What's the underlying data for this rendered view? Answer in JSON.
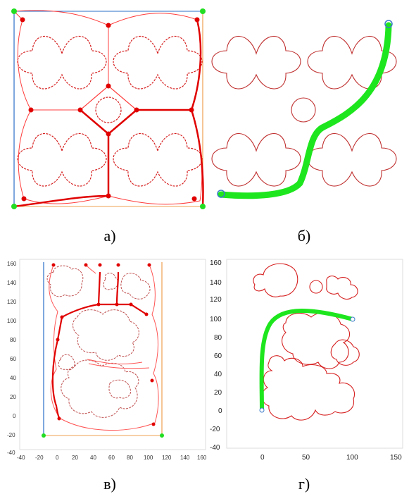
{
  "captions": {
    "a": "а)",
    "b": "б)",
    "c": "в)",
    "d": "г)"
  },
  "colors": {
    "obstacle": "#d62020",
    "diagram_edge": "#ff3b3b",
    "path": "#1ee61e",
    "node": "#e00000",
    "corner_node": "#22dd22",
    "left_border": "#2a6fc9",
    "right_border": "#f0a050"
  },
  "panel_c": {
    "x_ticks": [
      "-40",
      "-20",
      "0",
      "20",
      "40",
      "60",
      "80",
      "100",
      "120",
      "140",
      "160"
    ],
    "y_ticks": [
      "160",
      "140",
      "120",
      "100",
      "80",
      "60",
      "40",
      "20",
      "0",
      "-20",
      "-40"
    ]
  },
  "panel_d": {
    "x_ticks": [
      "0",
      "50",
      "100",
      "150"
    ],
    "y_ticks": [
      "160",
      "140",
      "120",
      "100",
      "80",
      "60",
      "40",
      "20",
      "0",
      "-20",
      "-40"
    ]
  }
}
